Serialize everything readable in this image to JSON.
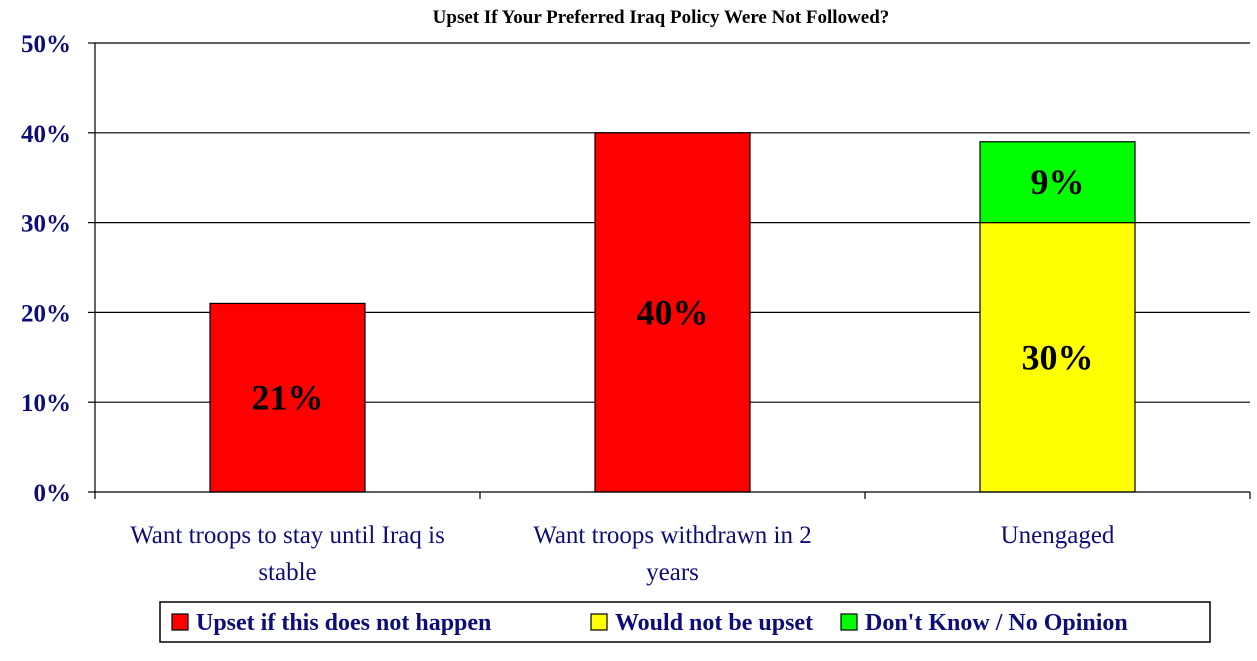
{
  "chart_data": {
    "type": "bar",
    "stacked": true,
    "title": "Upset If Your Preferred Iraq Policy Were Not Followed?",
    "categories": [
      [
        "Want troops to stay until Iraq is",
        "stable"
      ],
      [
        "Want troops withdrawn in 2",
        "years"
      ],
      [
        "Unengaged"
      ]
    ],
    "series": [
      {
        "name": "Upset if this does not happen",
        "color": "#ff0000",
        "values": [
          21,
          40,
          null
        ],
        "labels": [
          "21%",
          "40%",
          ""
        ]
      },
      {
        "name": "Would not be upset",
        "color": "#ffff00",
        "values": [
          null,
          null,
          30
        ],
        "labels": [
          "",
          "",
          "30%"
        ]
      },
      {
        "name": "Don't Know / No Opinion",
        "color": "#00ff00",
        "values": [
          null,
          null,
          9
        ],
        "labels": [
          "",
          "",
          "9%"
        ]
      }
    ],
    "ylim": [
      0,
      50
    ],
    "yticks": [
      0,
      10,
      20,
      30,
      40,
      50
    ],
    "ytick_labels": [
      "0%",
      "10%",
      "20%",
      "30%",
      "40%",
      "50%"
    ],
    "grid": true,
    "legend_position": "bottom"
  }
}
